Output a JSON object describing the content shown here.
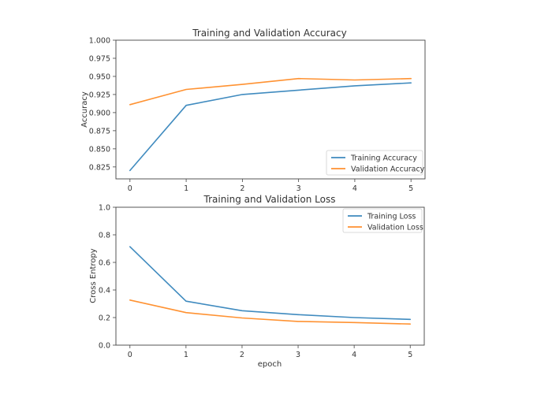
{
  "chart_data": [
    {
      "type": "line",
      "title": "Training and Validation Accuracy",
      "xlabel": "",
      "ylabel": "Accuracy",
      "x": [
        0,
        1,
        2,
        3,
        4,
        5
      ],
      "xticks": [
        "0",
        "1",
        "2",
        "3",
        "4",
        "5"
      ],
      "xlim": [
        -0.25,
        5.25
      ],
      "yticks": [
        "0.825",
        "0.850",
        "0.875",
        "0.900",
        "0.925",
        "0.950",
        "0.975",
        "1.000"
      ],
      "ytick_values": [
        0.825,
        0.85,
        0.875,
        0.9,
        0.925,
        0.95,
        0.975,
        1.0
      ],
      "ylim": [
        0.8085,
        1.0
      ],
      "grid": false,
      "legend_position": "lower-right",
      "series": [
        {
          "name": "Training Accuracy",
          "color": "#1f77b4",
          "values": [
            0.82,
            0.91,
            0.925,
            0.931,
            0.937,
            0.941
          ]
        },
        {
          "name": "Validation Accuracy",
          "color": "#ff7f0e",
          "values": [
            0.911,
            0.932,
            0.939,
            0.947,
            0.945,
            0.947
          ]
        }
      ]
    },
    {
      "type": "line",
      "title": "Training and Validation Loss",
      "xlabel": "epoch",
      "ylabel": "Cross Entropy",
      "x": [
        0,
        1,
        2,
        3,
        4,
        5
      ],
      "xticks": [
        "0",
        "1",
        "2",
        "3",
        "4",
        "5"
      ],
      "xlim": [
        -0.25,
        5.25
      ],
      "yticks": [
        "0.0",
        "0.2",
        "0.4",
        "0.6",
        "0.8",
        "1.0"
      ],
      "ytick_values": [
        0.0,
        0.2,
        0.4,
        0.6,
        0.8,
        1.0
      ],
      "ylim": [
        0.0,
        1.0
      ],
      "grid": false,
      "legend_position": "upper-right",
      "series": [
        {
          "name": "Training Loss",
          "color": "#1f77b4",
          "values": [
            0.714,
            0.319,
            0.25,
            0.221,
            0.2,
            0.187
          ]
        },
        {
          "name": "Validation Loss",
          "color": "#ff7f0e",
          "values": [
            0.327,
            0.236,
            0.197,
            0.172,
            0.164,
            0.153
          ]
        }
      ]
    }
  ]
}
